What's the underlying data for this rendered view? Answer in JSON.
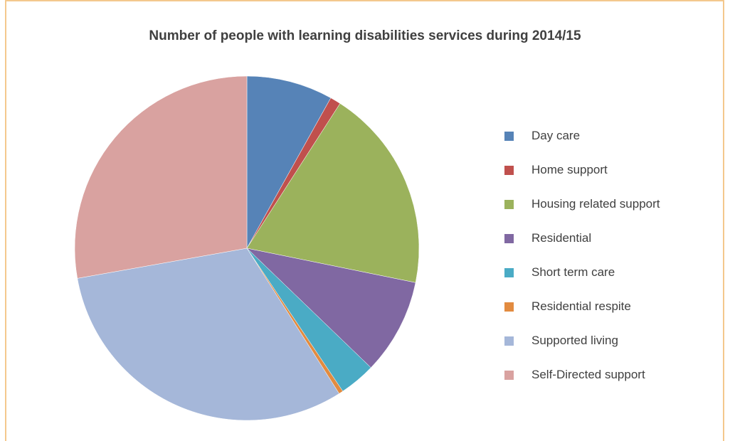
{
  "chart_data": {
    "type": "pie",
    "title": "Number of people with learning disabilities services during 2014/15",
    "legend_position": "right",
    "slices": [
      {
        "label": "Day care",
        "value": 8.1,
        "color": "#5683b7"
      },
      {
        "label": "Home support",
        "value": 1.0,
        "color": "#c0504d"
      },
      {
        "label": "Housing related support",
        "value": 19.1,
        "color": "#9bb25c"
      },
      {
        "label": "Residential",
        "value": 9.0,
        "color": "#8068a2"
      },
      {
        "label": "Short term care",
        "value": 3.4,
        "color": "#4aabc5"
      },
      {
        "label": "Residential respite",
        "value": 0.4,
        "color": "#e28b40"
      },
      {
        "label": "Supported living",
        "value": 31.2,
        "color": "#a5b7d9"
      },
      {
        "label": "Self-Directed support",
        "value": 27.8,
        "color": "#d9a2a0"
      }
    ]
  }
}
